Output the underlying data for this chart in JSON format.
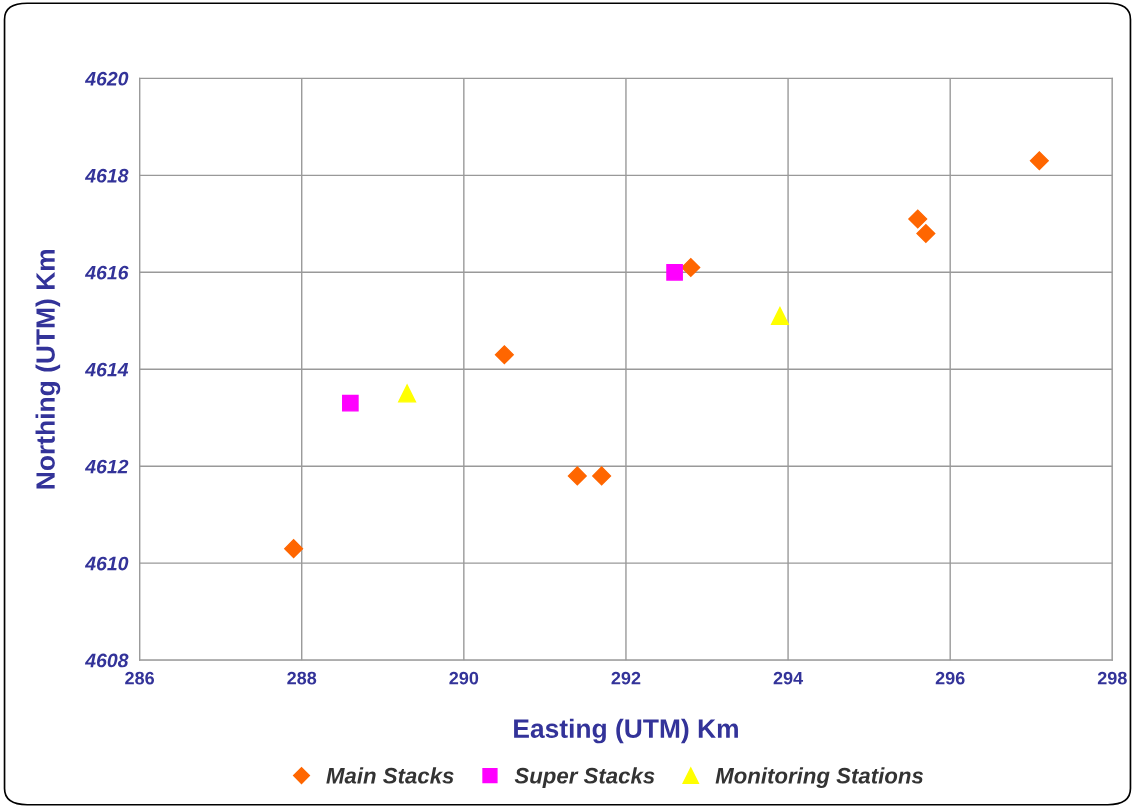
{
  "chart_data": {
    "type": "scatter",
    "xlabel": "Easting (UTM) Km",
    "ylabel": "Northing (UTM) Km",
    "xlim": [
      286,
      298
    ],
    "xticks": [
      286,
      288,
      290,
      292,
      294,
      296,
      298
    ],
    "ylim": [
      4608,
      4620
    ],
    "yticks": [
      4608,
      4610,
      4612,
      4614,
      4616,
      4618,
      4620
    ],
    "grid": true,
    "legend": "bottom",
    "series": [
      {
        "name": "Main Stacks",
        "color": "#ff6600",
        "marker": "diamond",
        "x": [
          287.9,
          290.5,
          291.4,
          291.7,
          292.8,
          295.6,
          295.7,
          297.1
        ],
        "values": [
          4610.3,
          4614.3,
          4611.8,
          4611.8,
          4616.1,
          4617.1,
          4616.8,
          4618.3
        ]
      },
      {
        "name": "Super Stacks",
        "color": "#ff00ff",
        "marker": "square",
        "x": [
          288.6,
          292.6
        ],
        "values": [
          4613.3,
          4616.0
        ]
      },
      {
        "name": "Monitoring Stations",
        "color": "#ffff00",
        "marker": "triangle",
        "x": [
          289.3,
          293.9
        ],
        "values": [
          4613.5,
          4615.1
        ]
      }
    ]
  }
}
